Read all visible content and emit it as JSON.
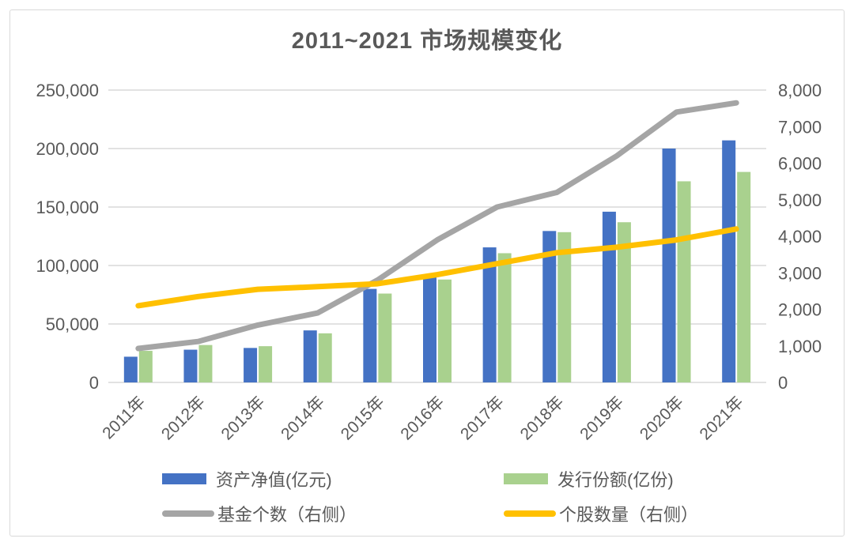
{
  "chart_data": {
    "type": "bar",
    "title": "2011~2021 市场规模变化",
    "categories": [
      "2011年",
      "2012年",
      "2013年",
      "2014年",
      "2015年",
      "2016年",
      "2017年",
      "2018年",
      "2019年",
      "2020年",
      "2021年"
    ],
    "series": [
      {
        "name": "资产净值(亿元)",
        "type": "bar",
        "axis": "left",
        "color": "#4472C4",
        "values": [
          22000,
          28000,
          29500,
          44500,
          80000,
          92000,
          115500,
          129500,
          146000,
          200000,
          207000
        ]
      },
      {
        "name": "发行份额(亿份)",
        "type": "bar",
        "axis": "left",
        "color": "#A9D18E",
        "values": [
          27000,
          32000,
          31000,
          42000,
          76000,
          88000,
          110500,
          128500,
          137000,
          172000,
          180000
        ]
      },
      {
        "name": "基金个数（右侧）",
        "type": "line",
        "axis": "right",
        "color": "#A5A5A5",
        "values": [
          930,
          1120,
          1570,
          1900,
          2800,
          3900,
          4800,
          5200,
          6200,
          7400,
          7650
        ]
      },
      {
        "name": "个股数量（右侧）",
        "type": "line",
        "axis": "right",
        "color": "#FFC000",
        "values": [
          2100,
          2350,
          2550,
          2620,
          2700,
          2950,
          3250,
          3550,
          3700,
          3900,
          4200
        ]
      }
    ],
    "left_axis": {
      "min": 0,
      "max": 250000,
      "ticks": [
        "0",
        "50,000",
        "100,000",
        "150,000",
        "200,000",
        "250,000"
      ]
    },
    "right_axis": {
      "min": 0,
      "max": 8000,
      "ticks": [
        "0",
        "1,000",
        "2,000",
        "3,000",
        "4,000",
        "5,000",
        "6,000",
        "7,000",
        "8,000"
      ]
    },
    "grid": true,
    "legend_position": "bottom"
  },
  "style": {
    "text_color": "#595959",
    "grid_color": "#D9D9D9",
    "background": "#FFFFFF"
  }
}
